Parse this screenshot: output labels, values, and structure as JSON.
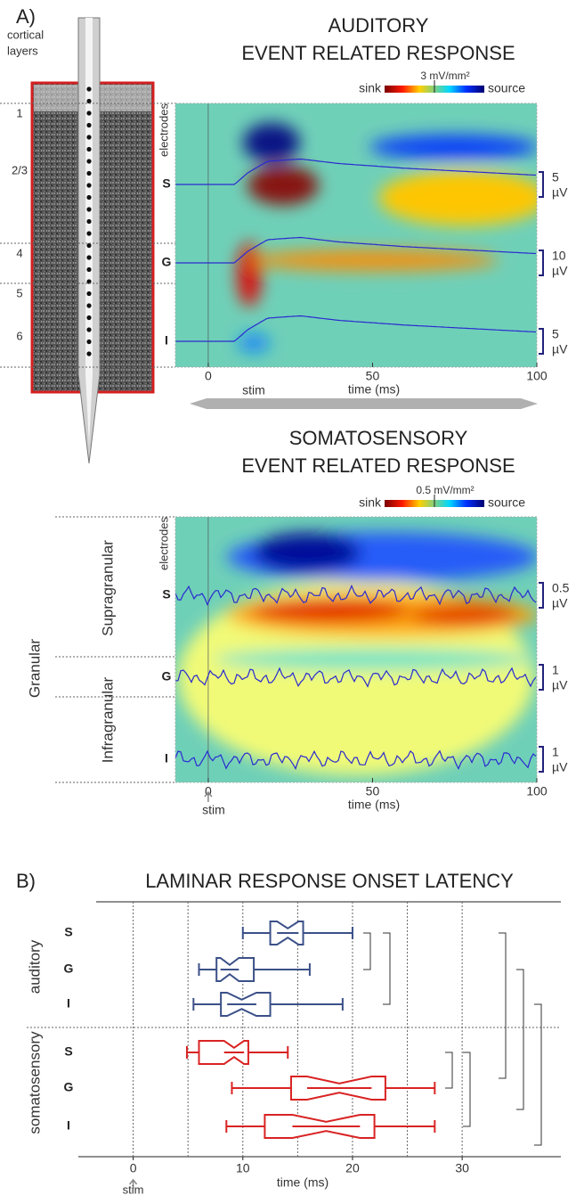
{
  "panels": {
    "a": "A)",
    "b": "B)"
  },
  "cortex": {
    "label_1": "cortical",
    "label_2": "layers",
    "layers": [
      "1",
      "2/3",
      "4",
      "5",
      "6"
    ]
  },
  "chart_data": [
    {
      "type": "heatmap",
      "title": "AUDITORY",
      "subtitle": "EVENT RELATED RESPONSE",
      "colorbar": {
        "low": "sink",
        "high": "source",
        "label": "3 mV/mm²"
      },
      "y_label": "electrodes",
      "categories": [
        "S",
        "G",
        "I"
      ],
      "scale_bars": [
        [
          "5",
          "µV"
        ],
        [
          "10",
          "µV"
        ],
        [
          "5",
          "µV"
        ]
      ],
      "xlim": [
        -10,
        100
      ],
      "xticks": [
        0,
        50,
        100
      ],
      "x_label": "time (ms)",
      "annotation": "stim"
    },
    {
      "type": "heatmap",
      "title": "SOMATOSENSORY",
      "subtitle": "EVENT RELATED RESPONSE",
      "colorbar": {
        "low": "sink",
        "high": "source",
        "label": "0.5 mV/mm²"
      },
      "y_label": "electrodes",
      "categories": [
        "S",
        "G",
        "I"
      ],
      "scale_bars": [
        [
          "0.5",
          "µV"
        ],
        [
          "1",
          "µV"
        ],
        [
          "1",
          "µV"
        ]
      ],
      "layers": [
        "Supragranular",
        "Granular",
        "Infragranular"
      ],
      "xlim": [
        -10,
        100
      ],
      "xticks": [
        0,
        50,
        100
      ],
      "x_label": "time (ms)",
      "annotation": "stim"
    },
    {
      "type": "box",
      "title": "LAMINAR RESPONSE ONSET LATENCY",
      "x_label": "time (ms)",
      "annotation": "stim",
      "categories": [
        "S",
        "G",
        "I"
      ],
      "xlim": [
        -5,
        39
      ],
      "xticks": [
        0,
        10,
        20,
        30
      ],
      "grid": [
        0,
        5,
        10,
        15,
        20,
        25,
        30
      ],
      "series": [
        {
          "name": "auditory",
          "color": "#3b5088",
          "values": [
            {
              "min": 10,
              "q1": 12.5,
              "median": 14.1,
              "q3": 15.5,
              "max": 20
            },
            {
              "min": 6,
              "q1": 7.6,
              "median": 8.8,
              "q3": 11,
              "max": 16.1
            },
            {
              "min": 5.5,
              "q1": 8,
              "median": 9.9,
              "q3": 12.5,
              "max": 19.1
            }
          ]
        },
        {
          "name": "somatosensory",
          "color": "#d92323",
          "values": [
            {
              "min": 4.9,
              "q1": 6,
              "median": 9.2,
              "q3": 10.5,
              "max": 14.1
            },
            {
              "min": 9,
              "q1": 14.4,
              "median": 18.8,
              "q3": 23,
              "max": 27.5
            },
            {
              "min": 8.5,
              "q1": 12,
              "median": 17.6,
              "q3": 22,
              "max": 27.5
            }
          ]
        }
      ]
    }
  ]
}
